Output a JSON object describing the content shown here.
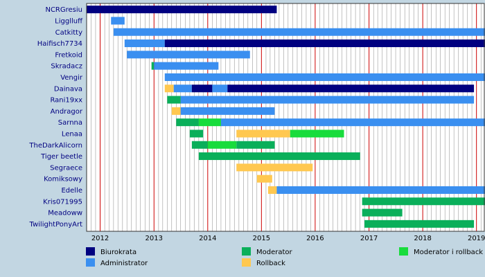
{
  "chart_data": {
    "type": "timeline",
    "x_axis": {
      "min": "2011-10-01",
      "max": "2019-02-28",
      "ticks": [
        "2012",
        "2013",
        "2014",
        "2015",
        "2016",
        "2017",
        "2018",
        "2019"
      ]
    },
    "roles": [
      {
        "key": "biurokrata",
        "label": "Biurokrata",
        "color": "#000080"
      },
      {
        "key": "administrator",
        "label": "Administrator",
        "color": "#3a8ff0"
      },
      {
        "key": "moderator",
        "label": "Moderator",
        "color": "#0aaf5a"
      },
      {
        "key": "rollback",
        "label": "Rollback",
        "color": "#ffc850"
      },
      {
        "key": "moderator_rollback",
        "label": "Moderator i rollback",
        "color": "#18dc3c"
      }
    ],
    "users": [
      {
        "name": "NCRGresiu",
        "spans": [
          {
            "role": "biurokrata",
            "start": "2011-10-01",
            "end": "2015-04-15"
          }
        ]
      },
      {
        "name": "Ligglluff",
        "spans": [
          {
            "role": "administrator",
            "start": "2012-03-15",
            "end": "2012-06-15"
          }
        ]
      },
      {
        "name": "Catkitty",
        "spans": [
          {
            "role": "administrator",
            "start": "2012-04-01",
            "end": "2019-02-28"
          }
        ]
      },
      {
        "name": "Haifisch7734",
        "spans": [
          {
            "role": "administrator",
            "start": "2012-06-15",
            "end": "2013-03-15"
          },
          {
            "role": "biurokrata",
            "start": "2013-03-15",
            "end": "2019-02-28"
          }
        ]
      },
      {
        "name": "Fretkoid",
        "spans": [
          {
            "role": "administrator",
            "start": "2012-07-01",
            "end": "2014-10-15"
          }
        ]
      },
      {
        "name": "Skradacz",
        "spans": [
          {
            "role": "moderator",
            "start": "2012-12-15",
            "end": "2013-01-01"
          },
          {
            "role": "administrator",
            "start": "2013-01-01",
            "end": "2014-03-15"
          }
        ]
      },
      {
        "name": "Vengir",
        "spans": [
          {
            "role": "administrator",
            "start": "2013-03-15",
            "end": "2019-02-28"
          }
        ]
      },
      {
        "name": "Dainava",
        "spans": [
          {
            "role": "rollback",
            "start": "2013-03-15",
            "end": "2013-05-15"
          },
          {
            "role": "administrator",
            "start": "2013-05-15",
            "end": "2013-09-15"
          },
          {
            "role": "biurokrata",
            "start": "2013-09-15",
            "end": "2014-02-01"
          },
          {
            "role": "administrator",
            "start": "2014-02-01",
            "end": "2014-05-15"
          },
          {
            "role": "biurokrata",
            "start": "2014-05-15",
            "end": "2018-12-15"
          }
        ]
      },
      {
        "name": "Rani19xx",
        "spans": [
          {
            "role": "moderator",
            "start": "2013-04-01",
            "end": "2013-07-01"
          },
          {
            "role": "administrator",
            "start": "2013-07-01",
            "end": "2018-12-15"
          }
        ]
      },
      {
        "name": "Andragor",
        "spans": [
          {
            "role": "rollback",
            "start": "2013-05-01",
            "end": "2013-07-01"
          },
          {
            "role": "administrator",
            "start": "2013-07-01",
            "end": "2015-04-01"
          }
        ]
      },
      {
        "name": "Sarnna",
        "spans": [
          {
            "role": "moderator",
            "start": "2013-06-01",
            "end": "2013-11-01"
          },
          {
            "role": "moderator_rollback",
            "start": "2013-11-01",
            "end": "2014-04-01"
          },
          {
            "role": "administrator",
            "start": "2014-04-01",
            "end": "2019-02-28"
          }
        ]
      },
      {
        "name": "Lenaa",
        "spans": [
          {
            "role": "moderator",
            "start": "2013-09-01",
            "end": "2013-12-01"
          },
          {
            "role": "rollback",
            "start": "2014-07-15",
            "end": "2015-07-15"
          },
          {
            "role": "moderator_rollback",
            "start": "2015-07-15",
            "end": "2016-07-15"
          }
        ]
      },
      {
        "name": "TheDarkAlicorn",
        "spans": [
          {
            "role": "moderator",
            "start": "2013-09-15",
            "end": "2014-01-01"
          },
          {
            "role": "moderator_rollback",
            "start": "2014-01-01",
            "end": "2014-07-15"
          },
          {
            "role": "moderator",
            "start": "2014-07-15",
            "end": "2015-04-01"
          }
        ]
      },
      {
        "name": "Tiger beetle",
        "spans": [
          {
            "role": "moderator",
            "start": "2013-11-01",
            "end": "2016-11-01"
          }
        ]
      },
      {
        "name": "Segraece",
        "spans": [
          {
            "role": "rollback",
            "start": "2014-07-15",
            "end": "2015-12-15"
          }
        ]
      },
      {
        "name": "Komiksowy",
        "spans": [
          {
            "role": "rollback",
            "start": "2014-12-01",
            "end": "2015-03-15"
          }
        ]
      },
      {
        "name": "Edelle",
        "spans": [
          {
            "role": "rollback",
            "start": "2015-02-15",
            "end": "2015-04-15"
          },
          {
            "role": "administrator",
            "start": "2015-04-15",
            "end": "2019-02-28"
          }
        ]
      },
      {
        "name": "Kris071995",
        "spans": [
          {
            "role": "moderator",
            "start": "2016-11-15",
            "end": "2019-02-28"
          }
        ]
      },
      {
        "name": "Meadoww",
        "spans": [
          {
            "role": "moderator",
            "start": "2016-11-15",
            "end": "2017-08-15"
          }
        ]
      },
      {
        "name": "TwilightPonyArt",
        "spans": [
          {
            "role": "moderator",
            "start": "2016-12-01",
            "end": "2018-12-15"
          }
        ]
      }
    ]
  },
  "colors": {
    "background": "#c2d6e2",
    "plot_background": "#ffffff",
    "month_grid": "#999999",
    "year_grid": "#cc0000",
    "border": "#333333"
  }
}
